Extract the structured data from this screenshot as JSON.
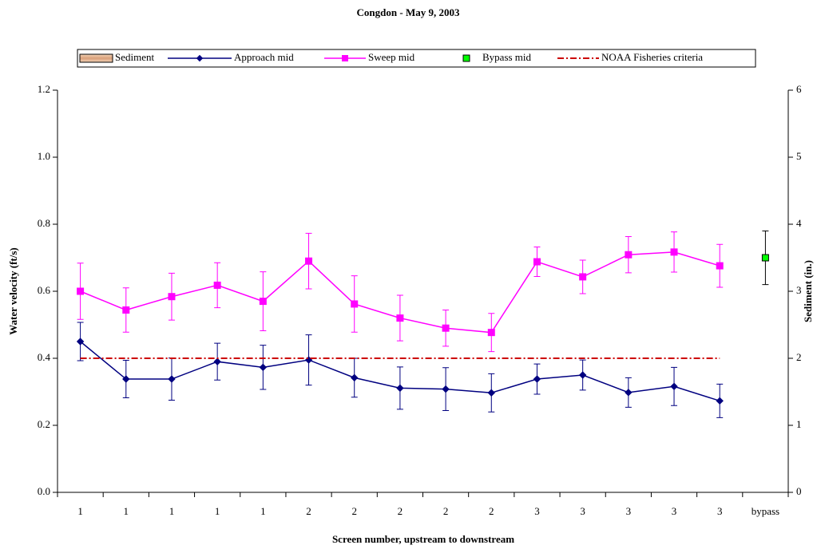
{
  "chart_data": {
    "type": "line",
    "title": "Congdon - May 9, 2003",
    "x_label": "Screen number, upstream to downstream",
    "y_label": "Water velocity (ft/s)",
    "y2_label": "Sediment (in.)",
    "categories": [
      "1",
      "1",
      "1",
      "1",
      "1",
      "2",
      "2",
      "2",
      "2",
      "2",
      "3",
      "3",
      "3",
      "3",
      "3",
      "bypass"
    ],
    "ylim": [
      0,
      1.2
    ],
    "yticks": [
      {
        "value": 0,
        "label": "0.0"
      },
      0.2,
      0.4,
      0.6,
      0.8,
      {
        "value": 1,
        "label": "1.0"
      },
      1.2
    ],
    "y2lim": [
      0,
      6
    ],
    "y2ticks": [
      0,
      1,
      2,
      3,
      4,
      5,
      6
    ],
    "series": [
      {
        "name": "Sediment",
        "color": "#d9a07a",
        "kind": "bar",
        "axis": "y2",
        "values": [
          null,
          null,
          null,
          null,
          null,
          null,
          null,
          null,
          null,
          null,
          null,
          null,
          null,
          null,
          null,
          null
        ]
      },
      {
        "name": "Approach mid",
        "color": "#000080",
        "marker": "diamond",
        "line": "solid",
        "values": [
          0.45,
          0.338,
          0.338,
          0.39,
          0.373,
          0.395,
          0.342,
          0.311,
          0.308,
          0.297,
          0.338,
          0.35,
          0.298,
          0.316,
          0.273,
          null
        ],
        "errors": [
          0.057,
          0.056,
          0.063,
          0.055,
          0.066,
          0.075,
          0.058,
          0.063,
          0.064,
          0.057,
          0.045,
          0.045,
          0.044,
          0.057,
          0.05,
          null
        ]
      },
      {
        "name": "Sweep mid",
        "color": "#ff00ff",
        "marker": "square",
        "line": "solid",
        "values": [
          0.6,
          0.544,
          0.584,
          0.618,
          0.57,
          0.69,
          0.562,
          0.52,
          0.49,
          0.477,
          0.688,
          0.643,
          0.709,
          0.717,
          0.676,
          null
        ],
        "errors": [
          0.084,
          0.066,
          0.07,
          0.067,
          0.088,
          0.083,
          0.084,
          0.068,
          0.054,
          0.057,
          0.044,
          0.05,
          0.054,
          0.06,
          0.064,
          null
        ]
      },
      {
        "name": "Bypass mid",
        "color": "#00ff00",
        "marker": "square",
        "line": "none",
        "values": [
          null,
          null,
          null,
          null,
          null,
          null,
          null,
          null,
          null,
          null,
          null,
          null,
          null,
          null,
          null,
          0.7
        ],
        "errors": [
          null,
          null,
          null,
          null,
          null,
          null,
          null,
          null,
          null,
          null,
          null,
          null,
          null,
          null,
          null,
          0.08
        ]
      },
      {
        "name": "NOAA Fisheries criteria",
        "color": "#cc0000",
        "line": "dashdot",
        "values": [
          0.4,
          0.4,
          0.4,
          0.4,
          0.4,
          0.4,
          0.4,
          0.4,
          0.4,
          0.4,
          0.4,
          0.4,
          0.4,
          0.4,
          0.4,
          null
        ]
      }
    ]
  }
}
